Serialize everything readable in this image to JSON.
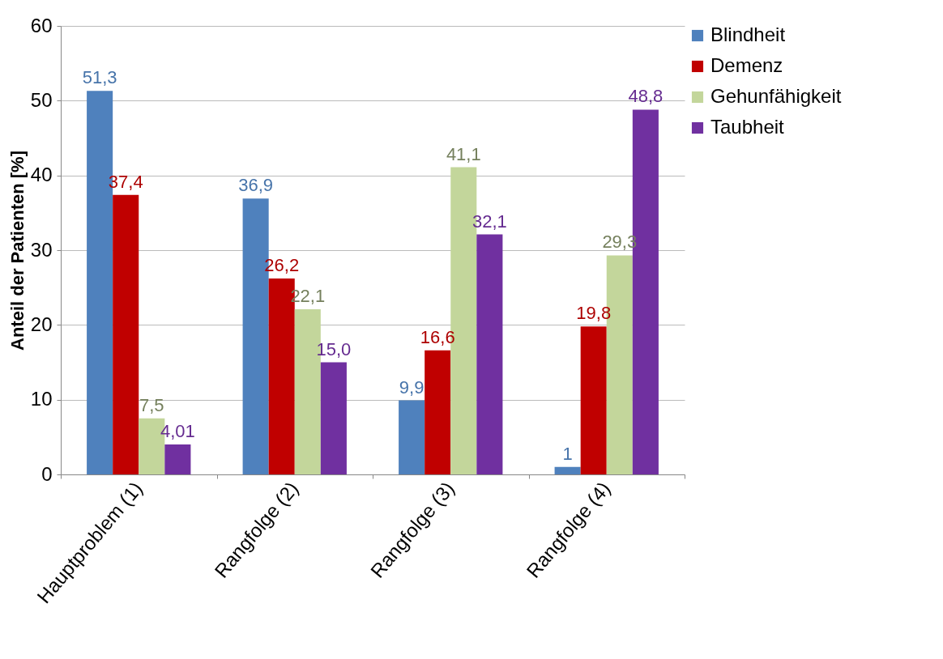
{
  "chart_data": {
    "type": "bar",
    "ylabel": "Anteil der Patienten [%]",
    "categories": [
      "Hauptproblem (1)",
      "Rangfolge (2)",
      "Rangfolge (3)",
      "Rangfolge (4)"
    ],
    "series": [
      {
        "name": "Blindheit",
        "color": "#4f81bd",
        "values": [
          51.3,
          36.9,
          9.9,
          1
        ],
        "value_labels": [
          "51,3",
          "36,9",
          "9,9",
          "1"
        ]
      },
      {
        "name": "Demenz",
        "color": "#c00000",
        "values": [
          37.4,
          26.2,
          16.6,
          19.8
        ],
        "value_labels": [
          "37,4",
          "26,2",
          "16,6",
          "19,8"
        ]
      },
      {
        "name": "Gehunfähigkeit",
        "color": "#c3d69b",
        "values": [
          7.5,
          22.1,
          41.1,
          29.3
        ],
        "value_labels": [
          "7,5",
          "22,1",
          "41,1",
          "29,3"
        ]
      },
      {
        "name": "Taubheit",
        "color": "#7030a0",
        "values": [
          4.01,
          15.0,
          32.1,
          48.8
        ],
        "value_labels": [
          "4,01",
          "15,0",
          "32,1",
          "48,8"
        ]
      }
    ],
    "ylim": [
      0,
      60
    ],
    "yticks": [
      0,
      10,
      20,
      30,
      40,
      50,
      60
    ],
    "grid": "y",
    "legend": "right"
  }
}
